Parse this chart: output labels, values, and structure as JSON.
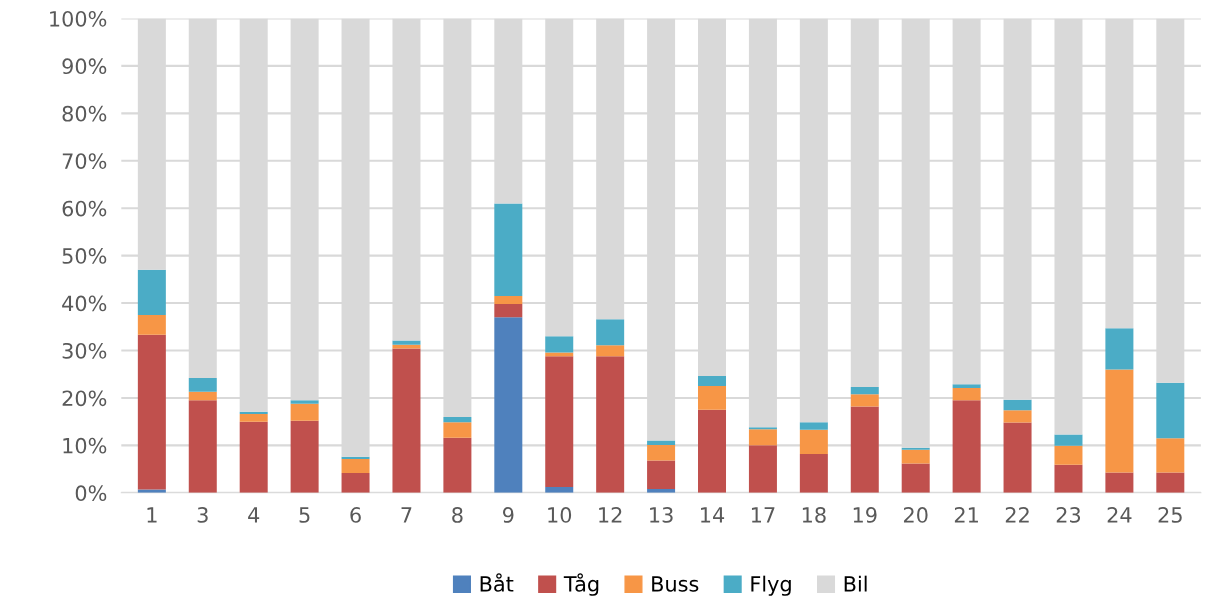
{
  "chart_data": {
    "type": "bar",
    "stacked": true,
    "categories": [
      "1",
      "3",
      "4",
      "5",
      "6",
      "7",
      "8",
      "9",
      "10",
      "12",
      "13",
      "14",
      "17",
      "18",
      "19",
      "20",
      "21",
      "22",
      "23",
      "24",
      "25"
    ],
    "series": [
      {
        "name": "Båt",
        "color": "#4f81bd",
        "values": [
          0.7,
          0,
          0,
          0,
          0,
          0,
          0,
          37,
          1.2,
          0,
          0.8,
          0,
          0,
          0,
          0,
          0,
          0,
          0,
          0,
          0,
          0
        ]
      },
      {
        "name": "Tåg",
        "color": "#c0504d",
        "values": [
          32.6,
          19.5,
          15,
          15.2,
          4.2,
          30.4,
          11.6,
          2.8,
          27.6,
          28.8,
          6,
          17.5,
          10,
          8.2,
          18.2,
          6.2,
          19.5,
          14.8,
          5.9,
          4.3,
          4.3
        ]
      },
      {
        "name": "Buss",
        "color": "#f79646",
        "values": [
          4.2,
          1.8,
          1.6,
          3.6,
          2.9,
          0.8,
          3.3,
          1.7,
          0.8,
          2.3,
          3.3,
          5,
          3.4,
          5.1,
          2.6,
          2.9,
          2.6,
          2.6,
          4,
          21.7,
          7.2
        ]
      },
      {
        "name": "Flyg",
        "color": "#4bacc6",
        "values": [
          9.5,
          2.9,
          0.5,
          0.7,
          0.5,
          0.9,
          1.1,
          19.5,
          3.4,
          5.5,
          0.9,
          2.1,
          0.4,
          1.6,
          1.5,
          0.4,
          0.8,
          2.2,
          2.4,
          8.7,
          11.7
        ]
      },
      {
        "name": "Bil",
        "color": "#d9d9d9",
        "values": [
          53,
          75.8,
          82.9,
          80.5,
          92.4,
          67.9,
          84,
          39,
          67,
          63.4,
          89,
          75.4,
          86.2,
          85.1,
          77.7,
          90.5,
          77.1,
          80.4,
          87.7,
          65.3,
          76.8
        ]
      }
    ],
    "ylim": [
      0,
      100
    ],
    "yticks": [
      {
        "value": 0,
        "label": "0%"
      },
      {
        "value": 10,
        "label": "10%"
      },
      {
        "value": 20,
        "label": "20%"
      },
      {
        "value": 30,
        "label": "30%"
      },
      {
        "value": 40,
        "label": "40%"
      },
      {
        "value": 50,
        "label": "50%"
      },
      {
        "value": 60,
        "label": "60%"
      },
      {
        "value": 70,
        "label": "70%"
      },
      {
        "value": 80,
        "label": "80%"
      },
      {
        "value": 90,
        "label": "90%"
      },
      {
        "value": 100,
        "label": "100%"
      }
    ],
    "grid": "y",
    "legend": "bottom"
  }
}
